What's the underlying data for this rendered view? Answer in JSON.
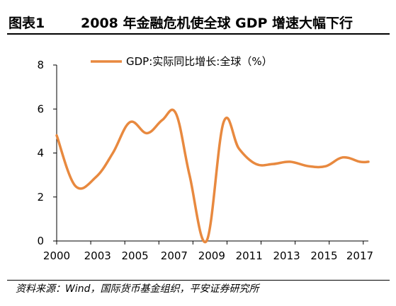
{
  "header": {
    "figure_label": "图表1",
    "title": "2008 年金融危机使全球 GDP 增速大幅下行"
  },
  "footer": {
    "source": "资料来源：Wind，国际货币基金组织，平安证券研究所"
  },
  "colors": {
    "line": "#E8893F",
    "axis": "#000000"
  },
  "chart_data": {
    "type": "line",
    "title": "2008 年金融危机使全球 GDP 增速大幅下行",
    "xlabel": "",
    "ylabel": "",
    "legend_position": "top",
    "grid": false,
    "xlim": [
      2000,
      2018.3
    ],
    "ylim": [
      0,
      8
    ],
    "x_ticks": [
      2000,
      2002,
      2004,
      2006,
      2008,
      2010,
      2012,
      2014,
      2016,
      2018
    ],
    "x_tick_labels": [
      "2000",
      "2003",
      "2005",
      "2007",
      "2009",
      "2011",
      "2013",
      "2015",
      "2017"
    ],
    "x_tick_label_positions": [
      2000,
      2002.4,
      2004.6,
      2006.9,
      2009.1,
      2011.3,
      2013.5,
      2015.7,
      2017.8
    ],
    "y_ticks": [
      0,
      2,
      4,
      6,
      8
    ],
    "y_tick_labels": [
      "0",
      "2",
      "4",
      "6",
      "8"
    ],
    "series": [
      {
        "name": "GDP:实际同比增长:全球（%）",
        "x": [
          2000,
          2001.1,
          2002.3,
          2003.3,
          2004.3,
          2005.3,
          2006.2,
          2007,
          2007.8,
          2008.8,
          2009.8,
          2010.7,
          2011.7,
          2012.7,
          2013.7,
          2014.8,
          2015.8,
          2016.8,
          2017.8,
          2018.3
        ],
        "values": [
          4.8,
          2.5,
          2.9,
          4.0,
          5.4,
          4.9,
          5.5,
          5.8,
          3.0,
          0.0,
          5.4,
          4.2,
          3.5,
          3.5,
          3.6,
          3.4,
          3.4,
          3.8,
          3.6,
          3.6
        ]
      }
    ]
  }
}
